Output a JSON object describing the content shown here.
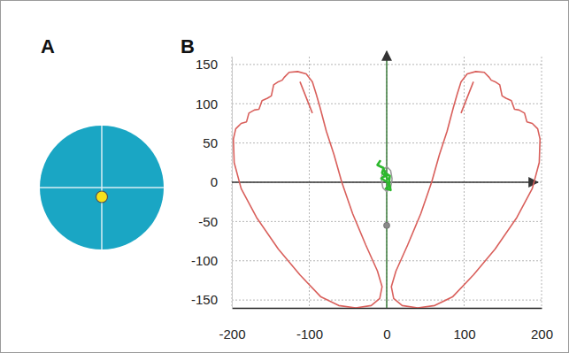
{
  "chart_data": [
    {
      "type": "scatter",
      "title": "A",
      "xlim": [
        -1,
        1
      ],
      "ylim": [
        -1,
        1
      ],
      "xticks": [
        0
      ],
      "yticks": [
        0
      ],
      "grid": true,
      "tick_labels": false,
      "series": [
        {
          "x": [
            0
          ],
          "y": [
            -0.15
          ],
          "color": "#f5e11a",
          "marker": "circle"
        }
      ]
    },
    {
      "type": "line",
      "title": "B",
      "xlim": [
        -200,
        200
      ],
      "ylim": [
        -160,
        160
      ],
      "xticks": [
        -200,
        -100,
        0,
        100,
        200
      ],
      "yticks": [
        -150,
        -100,
        -50,
        0,
        50,
        100,
        150
      ],
      "grid": true,
      "series": [
        {
          "type": "line",
          "color": "#d9605c",
          "x": [
            -40,
            -62,
            -85,
            -112,
            -140,
            -168,
            -188,
            -197,
            -198,
            -195,
            -188,
            -181,
            -178,
            -171,
            -165,
            -161,
            -154,
            -149,
            -146,
            -140,
            -135,
            -132,
            -126,
            -115,
            -104,
            -96,
            -91,
            -86,
            -78,
            -68,
            -58,
            -44,
            -27,
            -12,
            -6,
            -9,
            -20,
            -40,
            null,
            -112,
            -96
          ],
          "y": [
            -160,
            -157,
            -146,
            -118,
            -85,
            -45,
            -8,
            25,
            55,
            68,
            75,
            77,
            88,
            92,
            93,
            104,
            107,
            110,
            124,
            128,
            130,
            134,
            140,
            141,
            138,
            128,
            112,
            95,
            65,
            35,
            0,
            -40,
            -80,
            -113,
            -133,
            -148,
            -157,
            -160,
            null,
            128,
            88
          ]
        },
        {
          "type": "line",
          "color": "#d9605c",
          "x": [
            40,
            62,
            85,
            112,
            140,
            168,
            188,
            197,
            198,
            195,
            188,
            181,
            178,
            171,
            165,
            161,
            154,
            149,
            146,
            140,
            135,
            132,
            126,
            115,
            104,
            96,
            91,
            86,
            78,
            68,
            58,
            44,
            27,
            12,
            6,
            9,
            20,
            40,
            null,
            112,
            96
          ],
          "y": [
            -160,
            -157,
            -146,
            -118,
            -85,
            -45,
            -8,
            25,
            55,
            68,
            75,
            77,
            88,
            92,
            93,
            104,
            107,
            110,
            124,
            128,
            130,
            134,
            140,
            141,
            138,
            128,
            112,
            95,
            65,
            35,
            0,
            -40,
            -80,
            -113,
            -133,
            -148,
            -157,
            -160,
            null,
            128,
            88
          ]
        },
        {
          "type": "line",
          "color": "#9a9a9a",
          "x": [
            7,
            5,
            0,
            -5,
            -7,
            -5,
            0,
            5,
            7
          ],
          "y": [
            4,
            15,
            20,
            15,
            4,
            -7,
            -12,
            -7,
            4
          ]
        },
        {
          "type": "line",
          "color": "#2db82d",
          "x": [
            -8,
            -12,
            -4,
            -6,
            -2,
            -7,
            1,
            3,
            -1,
            5,
            3,
            4,
            -2,
            1,
            -3,
            0
          ],
          "y": [
            28,
            22,
            18,
            12,
            8,
            5,
            0,
            -5,
            -8,
            -10,
            0,
            8,
            12,
            4,
            15,
            6
          ]
        },
        {
          "type": "scatter",
          "color": "#8a8a8a",
          "marker": "circle",
          "x": [
            0
          ],
          "y": [
            -55
          ]
        }
      ]
    }
  ]
}
